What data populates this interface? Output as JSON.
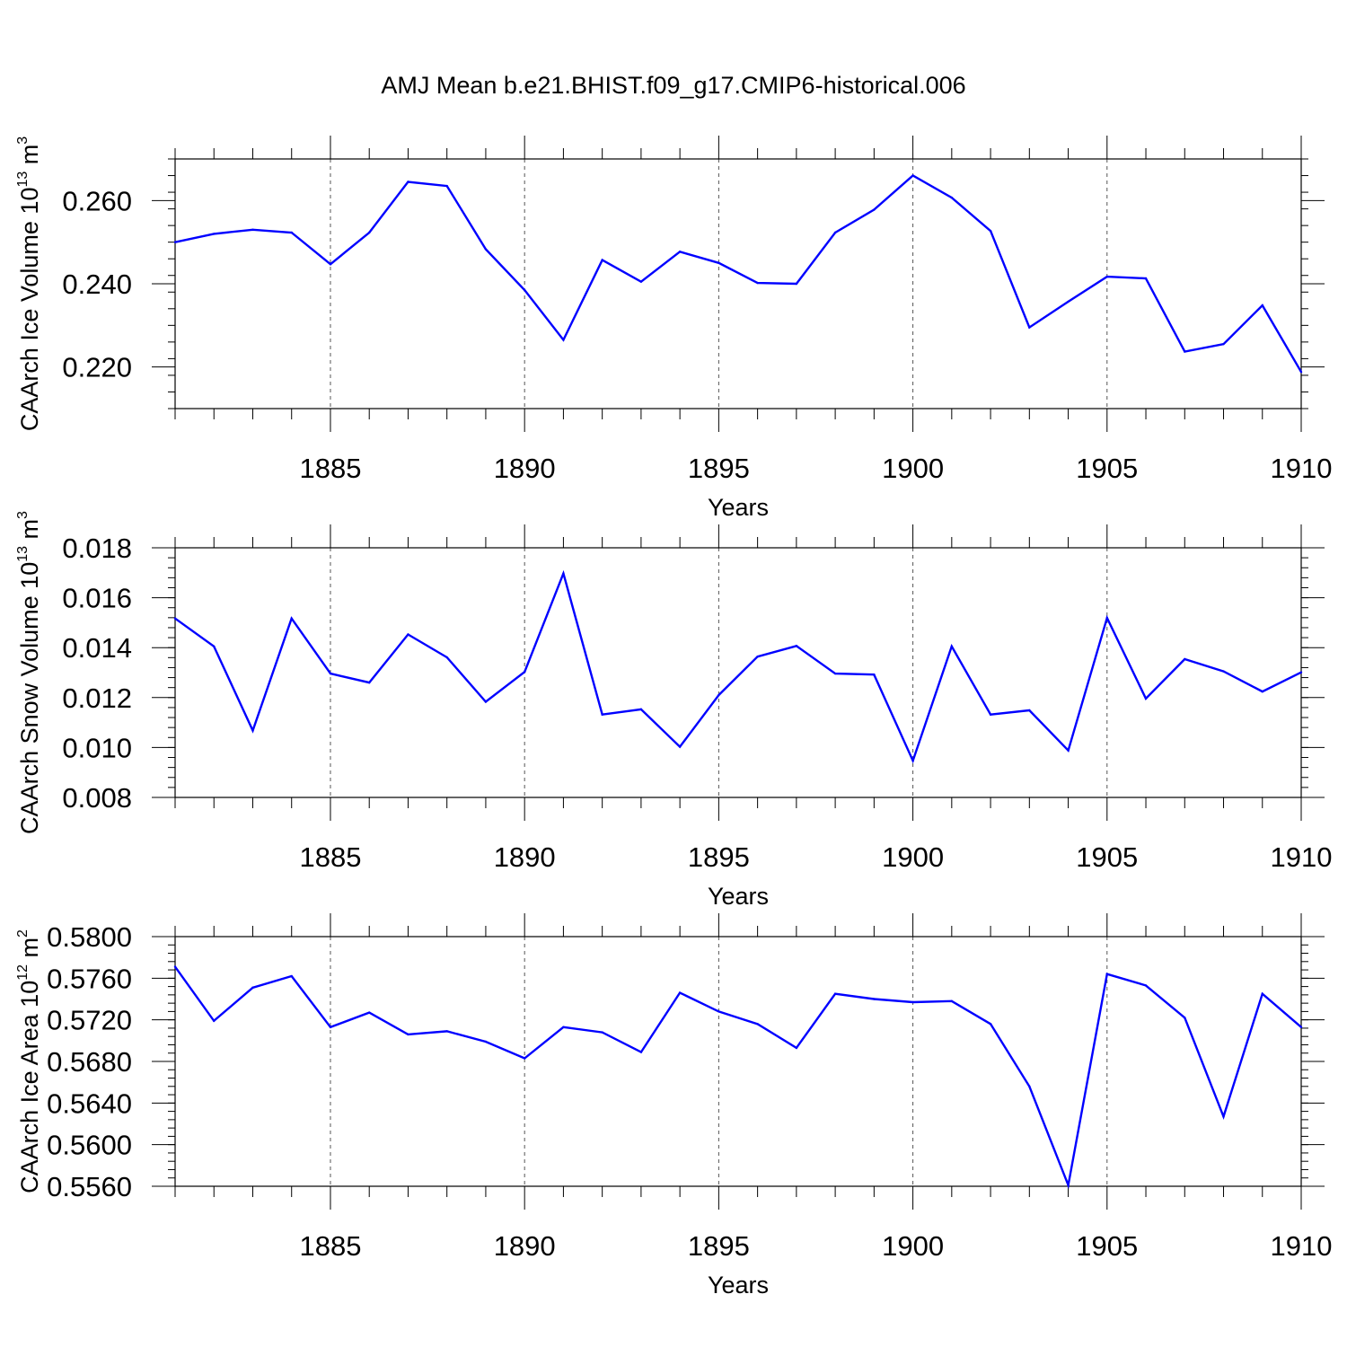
{
  "title": "AMJ Mean b.e21.BHIST.f09_g17.CMIP6-historical.006",
  "colors": {
    "series": "#0000ff",
    "axes": "#000000",
    "grid": "#555555"
  },
  "chart_data": [
    {
      "type": "line",
      "xlabel": "Years",
      "ylabel": {
        "text": "CAArch Ice Volume 10",
        "exp": "13",
        "unit": " m",
        "unit_exp": "3"
      },
      "xlim": [
        1881,
        1910
      ],
      "ylim": [
        0.21,
        0.27
      ],
      "xticks": [
        1885,
        1890,
        1895,
        1900,
        1905,
        1910
      ],
      "xtick_labels": [
        "1885",
        "1890",
        "1895",
        "1900",
        "1905",
        "1910"
      ],
      "yticks": [
        0.22,
        0.24,
        0.26
      ],
      "ytick_labels": [
        "0.220",
        "0.240",
        "0.260"
      ],
      "grid": "vertical dashed at major x ticks",
      "x": [
        1881,
        1882,
        1883,
        1884,
        1885,
        1886,
        1887,
        1888,
        1889,
        1890,
        1891,
        1892,
        1893,
        1894,
        1895,
        1896,
        1897,
        1898,
        1899,
        1900,
        1901,
        1902,
        1903,
        1904,
        1905,
        1906,
        1907,
        1908,
        1909,
        1910
      ],
      "values": [
        0.25,
        0.252,
        0.253,
        0.2523,
        0.2447,
        0.2523,
        0.2645,
        0.2635,
        0.2483,
        0.2385,
        0.2265,
        0.2457,
        0.2405,
        0.2477,
        0.245,
        0.2402,
        0.24,
        0.2523,
        0.2578,
        0.266,
        0.2607,
        0.2527,
        0.2295,
        0.2357,
        0.2417,
        0.2413,
        0.2237,
        0.2255,
        0.2348,
        0.2188
      ]
    },
    {
      "type": "line",
      "xlabel": "Years",
      "ylabel": {
        "text": "CAArch Snow Volume 10",
        "exp": "13",
        "unit": " m",
        "unit_exp": "3"
      },
      "xlim": [
        1881,
        1910
      ],
      "ylim": [
        0.008,
        0.018
      ],
      "xticks": [
        1885,
        1890,
        1895,
        1900,
        1905,
        1910
      ],
      "xtick_labels": [
        "1885",
        "1890",
        "1895",
        "1900",
        "1905",
        "1910"
      ],
      "yticks": [
        0.008,
        0.01,
        0.012,
        0.014,
        0.016,
        0.018
      ],
      "ytick_labels": [
        "0.008",
        "0.010",
        "0.012",
        "0.014",
        "0.016",
        "0.018"
      ],
      "grid": "vertical dashed at major x ticks",
      "x": [
        1881,
        1882,
        1883,
        1884,
        1885,
        1886,
        1887,
        1888,
        1889,
        1890,
        1891,
        1892,
        1893,
        1894,
        1895,
        1896,
        1897,
        1898,
        1899,
        1900,
        1901,
        1902,
        1903,
        1904,
        1905,
        1906,
        1907,
        1908,
        1909,
        1910
      ],
      "values": [
        0.01517,
        0.01405,
        0.01068,
        0.01517,
        0.01296,
        0.0126,
        0.01453,
        0.01361,
        0.01183,
        0.01303,
        0.01697,
        0.01132,
        0.01153,
        0.01003,
        0.0121,
        0.01364,
        0.01407,
        0.01296,
        0.01292,
        0.00947,
        0.01405,
        0.01132,
        0.01149,
        0.00988,
        0.01519,
        0.01196,
        0.01354,
        0.01305,
        0.01224,
        0.01301
      ]
    },
    {
      "type": "line",
      "xlabel": "Years",
      "ylabel": {
        "text": "CAArch Ice Area 10",
        "exp": "12",
        "unit": " m",
        "unit_exp": "2"
      },
      "xlim": [
        1881,
        1910
      ],
      "ylim": [
        0.556,
        0.58
      ],
      "xticks": [
        1885,
        1890,
        1895,
        1900,
        1905,
        1910
      ],
      "xtick_labels": [
        "1885",
        "1890",
        "1895",
        "1900",
        "1905",
        "1910"
      ],
      "yticks": [
        0.556,
        0.56,
        0.564,
        0.568,
        0.572,
        0.576,
        0.58
      ],
      "ytick_labels": [
        "0.5560",
        "0.5600",
        "0.5640",
        "0.5680",
        "0.5720",
        "0.5760",
        "0.5800"
      ],
      "grid": "vertical dashed at major x ticks",
      "x": [
        1881,
        1882,
        1883,
        1884,
        1885,
        1886,
        1887,
        1888,
        1889,
        1890,
        1891,
        1892,
        1893,
        1894,
        1895,
        1896,
        1897,
        1898,
        1899,
        1900,
        1901,
        1902,
        1903,
        1904,
        1905,
        1906,
        1907,
        1908,
        1909,
        1910
      ],
      "values": [
        0.5771,
        0.5719,
        0.5751,
        0.5762,
        0.5713,
        0.5727,
        0.5706,
        0.5709,
        0.5699,
        0.5683,
        0.5713,
        0.5708,
        0.5689,
        0.5746,
        0.5728,
        0.5716,
        0.5693,
        0.5745,
        0.574,
        0.5737,
        0.5738,
        0.5716,
        0.5656,
        0.5561,
        0.5764,
        0.5753,
        0.5722,
        0.5627,
        0.5745,
        0.5713
      ]
    }
  ]
}
